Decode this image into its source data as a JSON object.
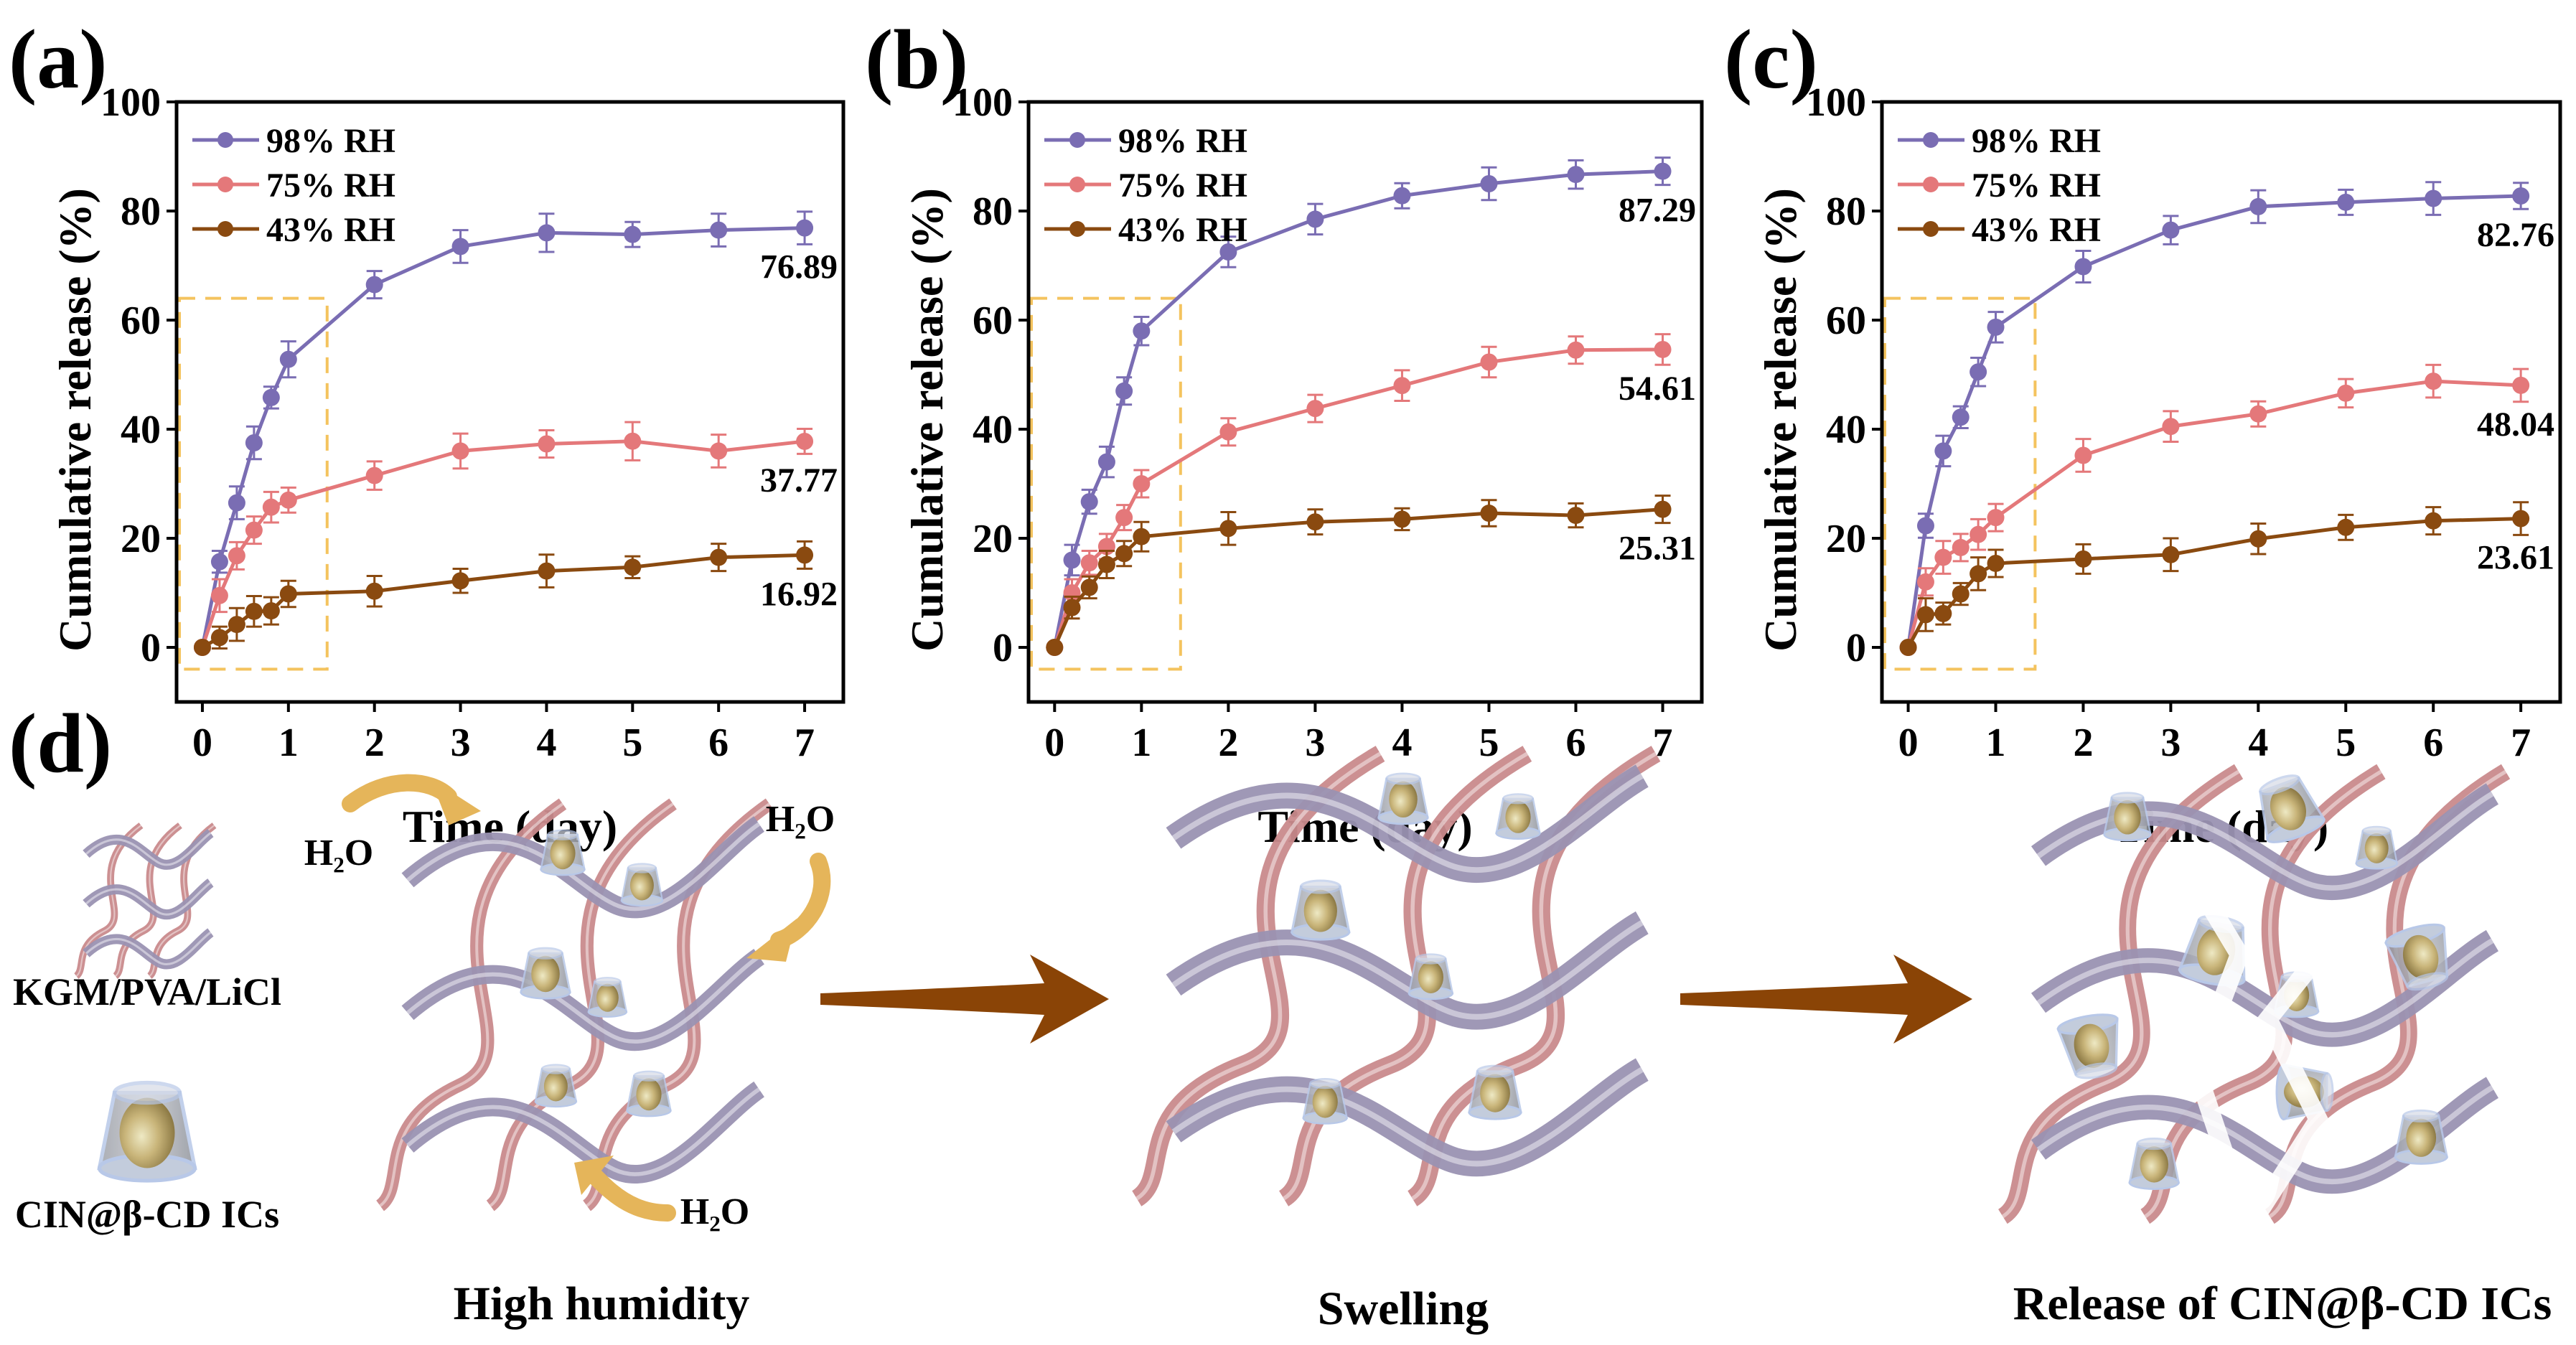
{
  "panel_labels": {
    "a": "(a)",
    "b": "(b)",
    "c": "(c)",
    "d": "(d)"
  },
  "colors": {
    "s98": "#7a6db3",
    "s75": "#e4787a",
    "s43": "#8a4a10",
    "dashed_box": "#f4c35e",
    "arrow": "#8a4406",
    "water_arrow": "#e5b55a",
    "kgm_strand": "#c98a8c",
    "pva_strand": "#9a92b2"
  },
  "chart_data": [
    {
      "type": "line",
      "panel": "a",
      "xlabel": "Time (day)",
      "ylabel": "Cumulative release (%)",
      "xlim": [
        -0.3,
        7.45
      ],
      "ylim": [
        -10,
        100
      ],
      "xticks": [
        0,
        1,
        2,
        3,
        4,
        5,
        6,
        7
      ],
      "yticks": [
        0,
        20,
        40,
        60,
        80,
        100
      ],
      "grid": false,
      "legend_position": "top-left",
      "highlight_box": {
        "x": [
          -0.3,
          1.45
        ],
        "y": [
          -4,
          64
        ],
        "style": "dashed"
      },
      "x": [
        0,
        0.2,
        0.4,
        0.6,
        0.8,
        1,
        2,
        3,
        4,
        5,
        6,
        7
      ],
      "series": [
        {
          "name": "98% RH",
          "color_key": "s98",
          "values": [
            0,
            15.7,
            26.5,
            37.5,
            45.8,
            52.8,
            66.5,
            73.5,
            76.0,
            75.7,
            76.5,
            76.89
          ],
          "error": [
            0,
            2,
            3,
            3,
            2,
            3.3,
            2.5,
            3,
            3.5,
            2.3,
            3,
            3
          ],
          "end_label": "76.89"
        },
        {
          "name": "75% RH",
          "color_key": "s75",
          "values": [
            0,
            9.5,
            16.8,
            21.5,
            25.7,
            27.0,
            31.5,
            36.0,
            37.3,
            37.8,
            36.0,
            37.77
          ],
          "error": [
            0,
            3,
            2.5,
            2.5,
            2.8,
            2.3,
            2.6,
            3.2,
            2.5,
            3.5,
            3,
            2.3
          ],
          "end_label": "37.77"
        },
        {
          "name": "43% RH",
          "color_key": "s43",
          "values": [
            0,
            1.8,
            4.2,
            6.6,
            6.7,
            9.8,
            10.3,
            12.2,
            14.0,
            14.7,
            16.5,
            16.92
          ],
          "error": [
            0,
            2,
            3,
            2.8,
            2.5,
            2.4,
            2.8,
            2.2,
            3,
            2,
            2.5,
            2.5
          ],
          "end_label": "16.92"
        }
      ]
    },
    {
      "type": "line",
      "panel": "b",
      "xlabel": "Time (day)",
      "ylabel": "Cumulative release (%)",
      "xlim": [
        -0.3,
        7.45
      ],
      "ylim": [
        -10,
        100
      ],
      "xticks": [
        0,
        1,
        2,
        3,
        4,
        5,
        6,
        7
      ],
      "yticks": [
        0,
        20,
        40,
        60,
        80,
        100
      ],
      "grid": false,
      "legend_position": "top-left",
      "highlight_box": {
        "x": [
          -0.3,
          1.45
        ],
        "y": [
          -4,
          64
        ],
        "style": "dashed"
      },
      "x": [
        0,
        0.2,
        0.4,
        0.6,
        0.8,
        1,
        2,
        3,
        4,
        5,
        6,
        7
      ],
      "series": [
        {
          "name": "98% RH",
          "color_key": "s98",
          "values": [
            0,
            16.0,
            26.7,
            34.0,
            47.0,
            58.0,
            72.5,
            78.5,
            82.8,
            85.0,
            86.7,
            87.29
          ],
          "error": [
            0,
            2.8,
            2.2,
            2.8,
            2.5,
            2.6,
            2.8,
            2.8,
            2.3,
            3,
            2.6,
            2.5
          ],
          "end_label": "87.29"
        },
        {
          "name": "75% RH",
          "color_key": "s75",
          "values": [
            0,
            10.0,
            15.5,
            18.5,
            23.8,
            30.0,
            39.5,
            43.8,
            48.0,
            52.3,
            54.5,
            54.61
          ],
          "error": [
            0,
            2.5,
            2.2,
            2.3,
            2.3,
            2.5,
            2.5,
            2.5,
            2.8,
            2.8,
            2.5,
            2.8
          ],
          "end_label": "54.61"
        },
        {
          "name": "43% RH",
          "color_key": "s43",
          "values": [
            0,
            7.3,
            11.0,
            15.2,
            17.2,
            20.3,
            21.8,
            23.0,
            23.5,
            24.6,
            24.2,
            25.31
          ],
          "error": [
            0,
            2,
            2,
            2.5,
            2.3,
            2.7,
            3,
            2.3,
            2,
            2.4,
            2.2,
            2.5
          ],
          "end_label": "25.31"
        }
      ]
    },
    {
      "type": "line",
      "panel": "c",
      "xlabel": "Time (day)",
      "ylabel": "Cumulative release (%)",
      "xlim": [
        -0.3,
        7.45
      ],
      "ylim": [
        -10,
        100
      ],
      "xticks": [
        0,
        1,
        2,
        3,
        4,
        5,
        6,
        7
      ],
      "yticks": [
        0,
        20,
        40,
        60,
        80,
        100
      ],
      "grid": false,
      "legend_position": "top-left",
      "highlight_box": {
        "x": [
          -0.3,
          1.45
        ],
        "y": [
          -4,
          64
        ],
        "style": "dashed"
      },
      "x": [
        0,
        0.2,
        0.4,
        0.6,
        0.8,
        1,
        2,
        3,
        4,
        5,
        6,
        7
      ],
      "series": [
        {
          "name": "98% RH",
          "color_key": "s98",
          "values": [
            0,
            22.3,
            36.0,
            42.2,
            50.5,
            58.7,
            69.8,
            76.5,
            80.8,
            81.6,
            82.3,
            82.76
          ],
          "error": [
            0,
            2.2,
            2.8,
            2,
            2.6,
            2.8,
            2.9,
            2.6,
            3,
            2.3,
            3,
            2.4
          ],
          "end_label": "82.76"
        },
        {
          "name": "75% RH",
          "color_key": "s75",
          "values": [
            0,
            12.0,
            16.5,
            18.3,
            20.7,
            23.8,
            35.2,
            40.5,
            42.8,
            46.6,
            48.8,
            48.04
          ],
          "error": [
            0,
            2.5,
            3,
            2.5,
            2.8,
            2.5,
            3,
            2.8,
            2.3,
            2.6,
            3,
            3
          ],
          "end_label": "48.04"
        },
        {
          "name": "43% RH",
          "color_key": "s43",
          "values": [
            0,
            6.0,
            6.2,
            9.8,
            13.5,
            15.4,
            16.2,
            17.0,
            19.9,
            22.0,
            23.2,
            23.61
          ],
          "error": [
            0,
            3,
            2,
            2,
            3,
            2.5,
            2.7,
            3,
            2.8,
            2.3,
            2.5,
            3
          ],
          "end_label": "23.61"
        }
      ]
    }
  ],
  "diagram": {
    "legend_network_label": "KGM/PVA/LiCl",
    "legend_ic_label": "CIN@β-CD ICs",
    "water_labels": [
      "H₂O",
      "H₂O",
      "H₂O"
    ],
    "stage_labels": [
      "High humidity",
      "Swelling",
      "Release of CIN@β-CD ICs"
    ]
  }
}
